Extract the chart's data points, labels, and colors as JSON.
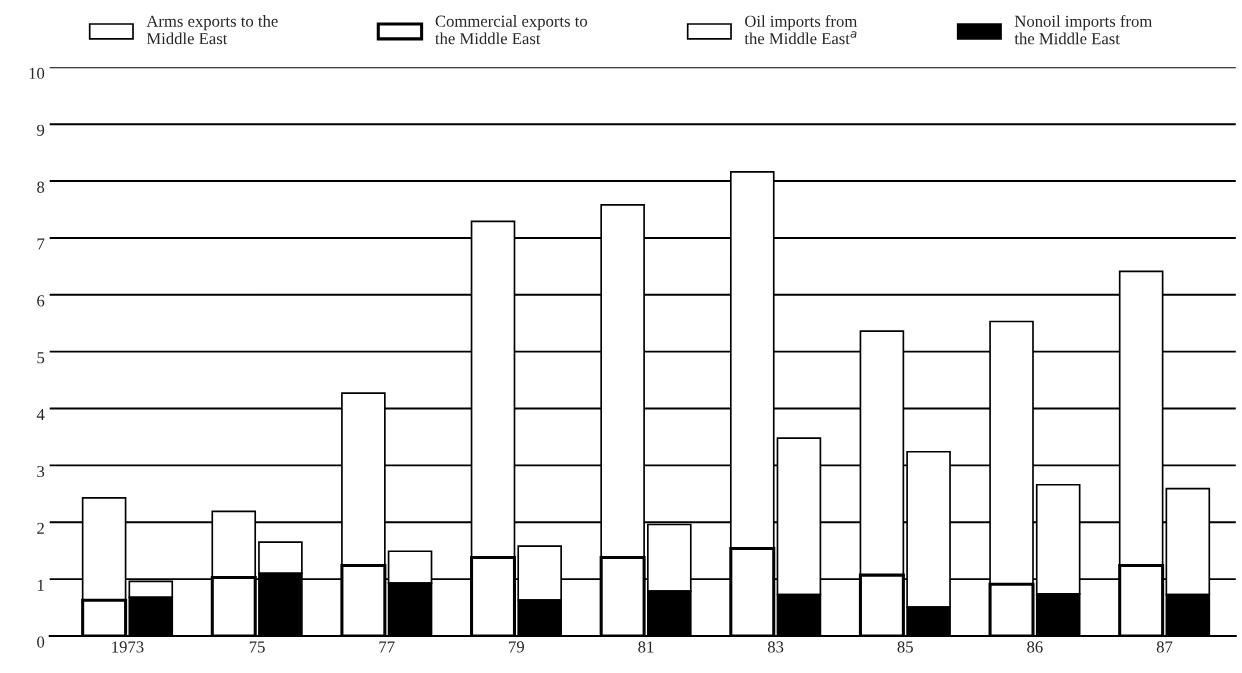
{
  "chart_data": {
    "type": "bar",
    "categories": [
      "1973",
      "75",
      "77",
      "79",
      "81",
      "83",
      "85",
      "86",
      "87"
    ],
    "series": [
      {
        "name": "Arms exports to the\nMiddle East",
        "color": "#ffffff",
        "base": [
          0.63,
          1.03,
          1.24,
          1.38,
          1.38,
          1.54,
          1.07,
          0.91,
          1.24
        ],
        "values": [
          1.8,
          1.16,
          3.03,
          5.91,
          6.2,
          6.62,
          4.29,
          4.62,
          5.17
        ]
      },
      {
        "name": "Commercial exports to\nthe Middle East",
        "color": "#ffffff",
        "values": [
          0.63,
          1.03,
          1.24,
          1.38,
          1.38,
          1.54,
          1.07,
          0.91,
          1.24
        ]
      },
      {
        "name": "Oil imports from\nthe Middle East$^{a}$",
        "color": "#ffffff",
        "base": [
          0.68,
          1.1,
          0.93,
          0.63,
          0.79,
          0.73,
          0.51,
          0.74,
          0.73
        ],
        "values": [
          0.28,
          0.55,
          0.56,
          0.95,
          1.17,
          2.75,
          2.73,
          1.92,
          1.86
        ]
      },
      {
        "name": "Nonoil imports from\nthe Middle East",
        "color": "#000000",
        "values": [
          0.68,
          1.1,
          0.93,
          0.63,
          0.79,
          0.73,
          0.51,
          0.74,
          0.73
        ]
      }
    ],
    "ylim": [
      0,
      10
    ],
    "yticks": [
      0,
      1,
      2,
      3,
      4,
      5,
      6,
      7,
      8,
      9,
      10
    ],
    "grid": "y",
    "legend": "top"
  }
}
